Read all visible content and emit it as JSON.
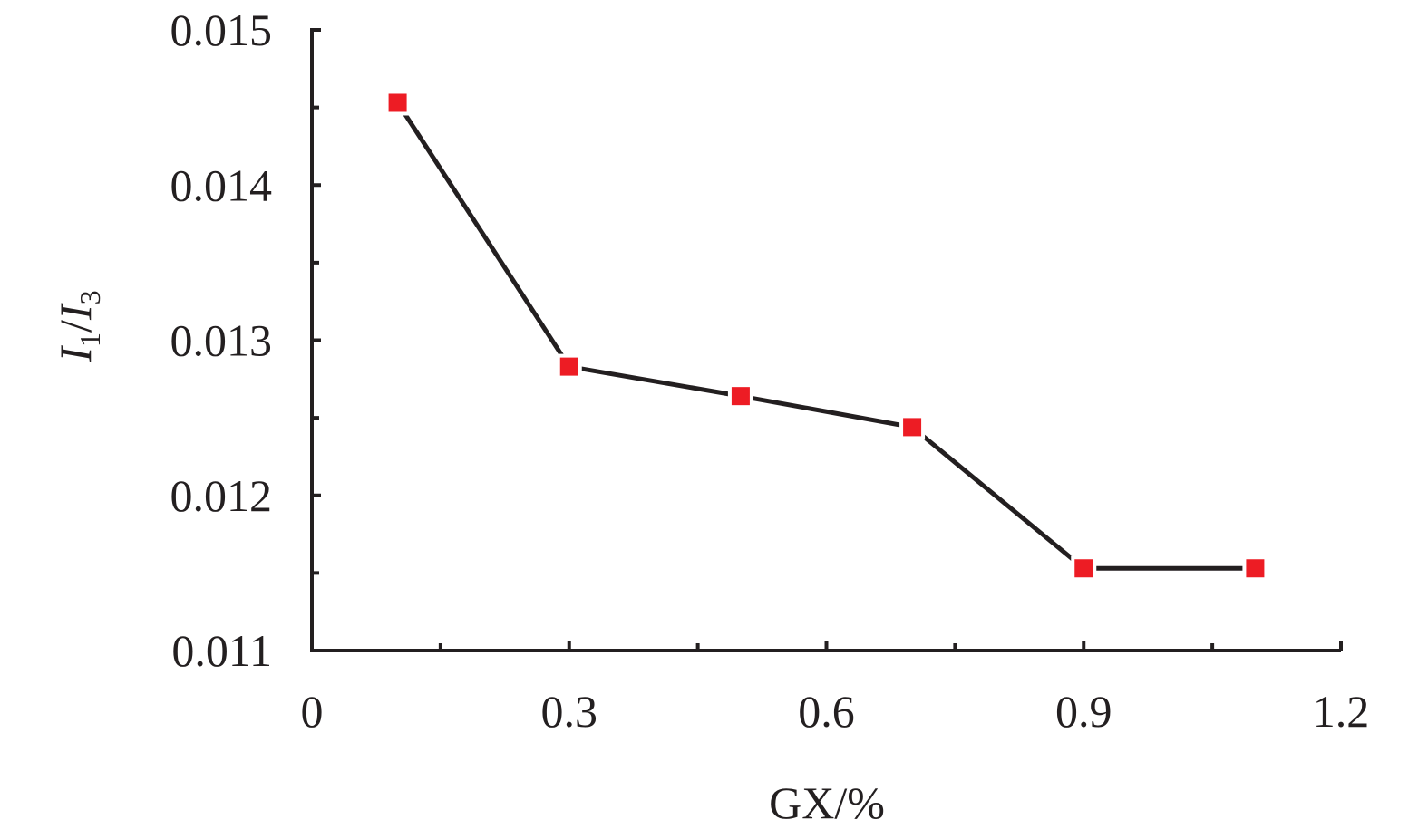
{
  "chart_data": {
    "type": "line",
    "title": "",
    "xlabel": "GX/%",
    "ylabel": {
      "main1": "I",
      "sub1": "1",
      "sep": "/",
      "main2": "I",
      "sub2": "3"
    },
    "xlim": [
      0,
      1.2
    ],
    "ylim": [
      0.011,
      0.015
    ],
    "x_ticks": [
      "0",
      "0.3",
      "0.6",
      "0.9",
      "1.2"
    ],
    "x_tick_values": [
      0,
      0.3,
      0.6,
      0.9,
      1.2
    ],
    "x_minor_tick_values": [
      0.15,
      0.45,
      0.75,
      1.05
    ],
    "y_ticks": [
      "0.011",
      "0.012",
      "0.013",
      "0.014",
      "0.015"
    ],
    "y_tick_values": [
      0.011,
      0.012,
      0.013,
      0.014,
      0.015
    ],
    "y_minor_tick_values": [
      0.0115,
      0.0125,
      0.0135,
      0.0145
    ],
    "grid": false,
    "legend": "none",
    "series": [
      {
        "x": [
          0.1,
          0.3,
          0.5,
          0.7,
          0.9,
          1.1
        ],
        "y": [
          0.01453,
          0.01283,
          0.01264,
          0.01244,
          0.01153,
          0.01153
        ],
        "line_color": "#231f20",
        "marker": "square",
        "marker_color": "#ed1c24"
      }
    ],
    "axis_color": "#231f20"
  }
}
